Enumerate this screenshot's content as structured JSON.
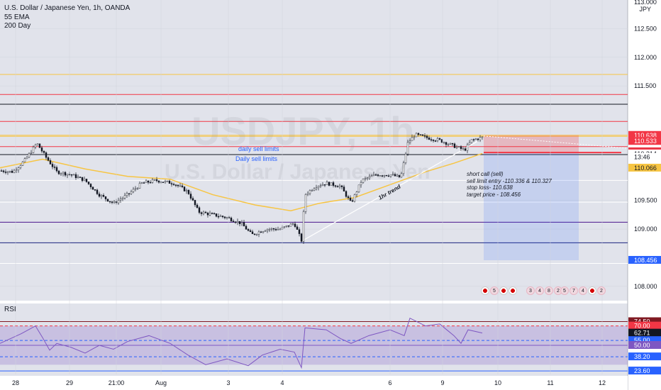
{
  "header": {
    "symbol_title": "U.S. Dollar / Japanese Yen, 1h, OANDA",
    "indicator_1": "55 EMA",
    "indicator_2": "200 Day",
    "currency": "JPY",
    "top_cut_label": "113.000"
  },
  "watermark": {
    "ticker": "USDJPY, 1h",
    "name": "U.S. Dollar / Japanese Yen"
  },
  "annotations": {
    "daily_sell_1": "daily sell limits",
    "daily_sell_2": "Daily sell limits",
    "trend_label": "1hr trend",
    "note_lines": [
      "short call (sell)",
      "sell limit entry -110.336 & 110.327",
      "stop loss- 110.638",
      "target price - 108.456"
    ]
  },
  "price_badges": [
    {
      "text": "110.638",
      "bg": "#f23645",
      "fg": "#ffffff",
      "value": 110.638
    },
    {
      "text": "110.533",
      "bg": "#f23645",
      "fg": "#ffffff",
      "value": 110.533
    },
    {
      "text": "110.352",
      "bg": "#f23645",
      "fg": "#ffffff",
      "value": 110.352
    },
    {
      "text": "110.336",
      "bg": "#434651",
      "fg": "#ffffff",
      "value": 110.336
    },
    {
      "text": "110.336",
      "bg": "#f23645",
      "fg": "#ffffff",
      "value": 110.336
    },
    {
      "text": "110.327",
      "bg": "#f23645",
      "fg": "#ffffff",
      "value": 110.327
    },
    {
      "text": "110.314",
      "bg": "#ffffff",
      "fg": "#131722",
      "value": 110.314
    },
    {
      "text": "13:46",
      "bg": "#ffffff",
      "fg": "#131722",
      "value": 110.255
    },
    {
      "text": "110.066",
      "bg": "#f7c543",
      "fg": "#131722",
      "value": 110.066
    },
    {
      "text": "108.456",
      "bg": "#2962ff",
      "fg": "#ffffff",
      "value": 108.456
    }
  ],
  "rsi": {
    "title": "RSI",
    "badges": [
      {
        "text": "74.50",
        "bg": "#801922",
        "fg": "#ffffff",
        "value": 74.5
      },
      {
        "text": "70.00",
        "bg": "#f23645",
        "fg": "#ffffff",
        "value": 70
      },
      {
        "text": "62.71",
        "bg": "#131722",
        "fg": "#ffffff",
        "value": 62.71
      },
      {
        "text": "55.00",
        "bg": "#2962ff",
        "fg": "#ffffff",
        "value": 55
      },
      {
        "text": "50.00",
        "bg": "#7e57c2",
        "fg": "#ffffff",
        "value": 50
      },
      {
        "text": "38.20",
        "bg": "#2962ff",
        "fg": "#ffffff",
        "value": 38.2
      },
      {
        "text": "23.60",
        "bg": "#2962ff",
        "fg": "#ffffff",
        "value": 23.6
      }
    ]
  },
  "chart_data": {
    "type": "candlestick",
    "title": "U.S. Dollar / Japanese Yen, 1h, OANDA",
    "y_axis_ticks": [
      "112.500",
      "112.000",
      "111.500",
      "109.500",
      "109.000",
      "108.000"
    ],
    "x_axis_ticks": [
      "28",
      "29",
      "21:00",
      "Aug",
      "3",
      "4",
      "6",
      "9",
      "10",
      "11",
      "12"
    ],
    "ylim": [
      107.75,
      113.0
    ],
    "close_path": [
      [
        0,
        110.02
      ],
      [
        18,
        110.0
      ],
      [
        35,
        110.2
      ],
      [
        52,
        110.5
      ],
      [
        65,
        110.25
      ],
      [
        80,
        110.0
      ],
      [
        100,
        109.95
      ],
      [
        120,
        109.85
      ],
      [
        140,
        109.6
      ],
      [
        160,
        109.45
      ],
      [
        180,
        109.6
      ],
      [
        200,
        109.8
      ],
      [
        220,
        109.85
      ],
      [
        245,
        109.8
      ],
      [
        265,
        109.65
      ],
      [
        280,
        109.3
      ],
      [
        300,
        109.25
      ],
      [
        320,
        109.2
      ],
      [
        340,
        109.1
      ],
      [
        355,
        108.9
      ],
      [
        375,
        109.0
      ],
      [
        395,
        109.0
      ],
      [
        415,
        109.1
      ],
      [
        425,
        108.8
      ],
      [
        430,
        109.6
      ],
      [
        445,
        109.75
      ],
      [
        460,
        109.8
      ],
      [
        480,
        109.75
      ],
      [
        495,
        109.45
      ],
      [
        510,
        109.85
      ],
      [
        530,
        109.95
      ],
      [
        550,
        109.95
      ],
      [
        565,
        109.9
      ],
      [
        575,
        110.5
      ],
      [
        585,
        110.65
      ],
      [
        600,
        110.6
      ],
      [
        620,
        110.55
      ],
      [
        640,
        110.45
      ],
      [
        655,
        110.38
      ],
      [
        665,
        110.55
      ],
      [
        680,
        110.6
      ]
    ],
    "series": [
      {
        "name": "55 EMA",
        "color": "#f7c543"
      },
      {
        "name": "200 Day",
        "color": "#f7c543"
      }
    ],
    "rsi_series": [
      [
        0,
        52
      ],
      [
        30,
        62
      ],
      [
        50,
        70
      ],
      [
        60,
        58
      ],
      [
        70,
        45
      ],
      [
        80,
        52
      ],
      [
        100,
        48
      ],
      [
        120,
        42
      ],
      [
        140,
        50
      ],
      [
        160,
        46
      ],
      [
        180,
        54
      ],
      [
        210,
        60
      ],
      [
        240,
        52
      ],
      [
        265,
        40
      ],
      [
        290,
        30
      ],
      [
        320,
        36
      ],
      [
        350,
        29
      ],
      [
        370,
        40
      ],
      [
        395,
        46
      ],
      [
        415,
        43
      ],
      [
        425,
        27
      ],
      [
        430,
        68
      ],
      [
        460,
        66
      ],
      [
        480,
        57
      ],
      [
        495,
        52
      ],
      [
        520,
        60
      ],
      [
        550,
        66
      ],
      [
        570,
        60
      ],
      [
        578,
        78
      ],
      [
        600,
        70
      ],
      [
        620,
        72
      ],
      [
        640,
        60
      ],
      [
        650,
        52
      ],
      [
        660,
        66
      ],
      [
        680,
        62.71
      ]
    ],
    "rsi_levels": [
      74.5,
      70,
      55,
      50,
      38.2,
      23.6
    ],
    "horizontal_levels": [
      {
        "value": 111.7,
        "color": "#f7c543",
        "style": "solid"
      },
      {
        "value": 111.35,
        "color": "#f23645",
        "style": "solid"
      },
      {
        "value": 111.18,
        "color": "#131722",
        "style": "solid"
      },
      {
        "value": 110.88,
        "color": "#f23645",
        "style": "solid"
      },
      {
        "value": 110.638,
        "color": "#f7c543",
        "style": "solid"
      },
      {
        "value": 110.62,
        "color": "#f7c543",
        "style": "solid"
      },
      {
        "value": 110.44,
        "color": "#f23645",
        "style": "solid"
      },
      {
        "value": 110.3,
        "color": "#131722",
        "style": "solid"
      },
      {
        "value": 109.85,
        "color": "#ffffff",
        "style": "solid"
      },
      {
        "value": 109.47,
        "color": "#ffffff",
        "style": "solid"
      },
      {
        "value": 109.12,
        "color": "#4a148c",
        "style": "solid"
      },
      {
        "value": 108.76,
        "color": "#1a237e",
        "style": "solid"
      },
      {
        "value": 108.4,
        "color": "#ffffff",
        "style": "solid"
      }
    ],
    "trade_zone": {
      "entry": 110.336,
      "stop": 110.638,
      "target": 108.456
    }
  }
}
